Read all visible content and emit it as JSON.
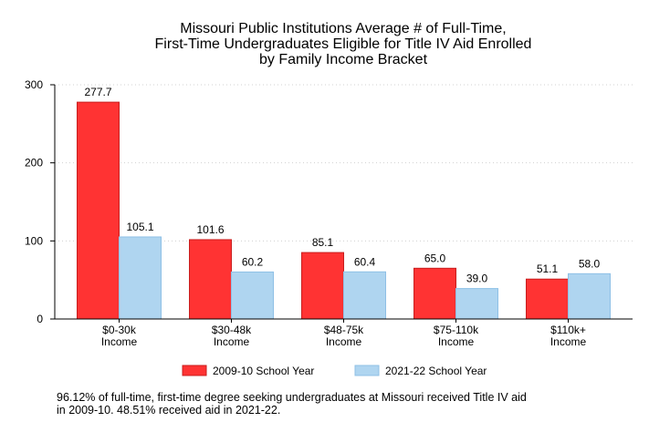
{
  "chart_data": {
    "type": "bar",
    "title_lines": [
      "Missouri Public Institutions Average # of Full-Time,",
      "First-Time Undergraduates Eligible for Title IV Aid Enrolled",
      "by Family Income Bracket"
    ],
    "categories": [
      [
        "$0-30k",
        "Income"
      ],
      [
        "$30-48k",
        "Income"
      ],
      [
        "$48-75k",
        "Income"
      ],
      [
        "$75-110k",
        "Income"
      ],
      [
        "$110k+",
        "Income"
      ]
    ],
    "series": [
      {
        "name": "2009-10 School Year",
        "values": [
          277.7,
          101.6,
          85.1,
          65.0,
          51.1
        ],
        "labels": [
          "277.7",
          "101.6",
          "85.1",
          "65.0",
          "51.1"
        ],
        "color": "#ff3333",
        "stroke": "#c81e1e"
      },
      {
        "name": "2021-22 School Year",
        "values": [
          105.1,
          60.2,
          60.4,
          39.0,
          58.0
        ],
        "labels": [
          "105.1",
          "60.2",
          "60.4",
          "39.0",
          "58.0"
        ],
        "color": "#afd5f0",
        "stroke": "#8fc0e6"
      }
    ],
    "ylim": [
      0,
      300
    ],
    "yticks": [
      0,
      100,
      200,
      300
    ],
    "grid": true,
    "legend": "bottom"
  },
  "footnote": [
    "96.12% of full-time, first-time degree seeking undergraduates at Missouri received Title IV aid",
    "in 2009-10. 48.51% received aid in 2021-22."
  ]
}
